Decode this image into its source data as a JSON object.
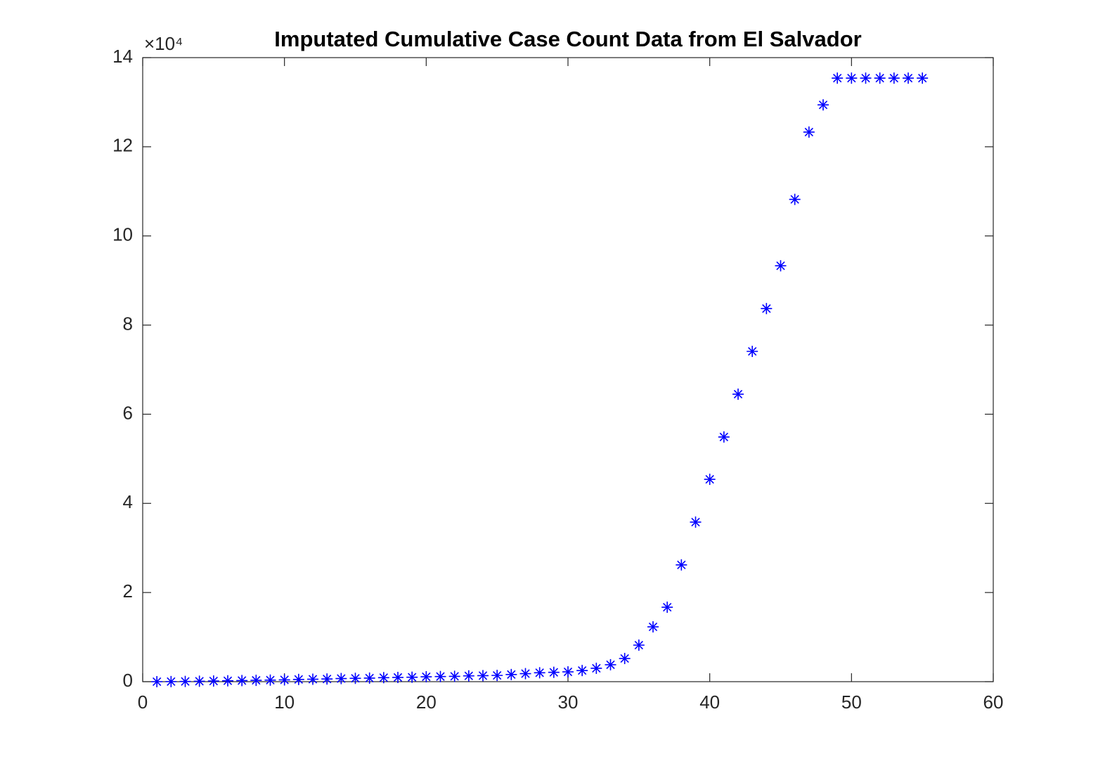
{
  "chart_data": {
    "type": "scatter",
    "title": "Imputated Cumulative Case Count Data from El Salvador",
    "y_exponent_label": "×10⁴",
    "marker": "asterisk",
    "color": "#0000ff",
    "x": [
      1,
      2,
      3,
      4,
      5,
      6,
      7,
      8,
      9,
      10,
      11,
      12,
      13,
      14,
      15,
      16,
      17,
      18,
      19,
      20,
      21,
      22,
      23,
      24,
      25,
      26,
      27,
      28,
      29,
      30,
      31,
      32,
      33,
      34,
      35,
      36,
      37,
      38,
      39,
      40,
      41,
      42,
      43,
      44,
      45,
      46,
      47,
      48,
      49,
      50,
      51,
      52,
      53,
      54,
      55
    ],
    "values": [
      0,
      0.002,
      0.005,
      0.01,
      0.015,
      0.02,
      0.025,
      0.03,
      0.035,
      0.04,
      0.05,
      0.055,
      0.06,
      0.07,
      0.075,
      0.08,
      0.09,
      0.095,
      0.1,
      0.11,
      0.115,
      0.12,
      0.13,
      0.135,
      0.14,
      0.16,
      0.18,
      0.2,
      0.21,
      0.22,
      0.25,
      0.3,
      0.38,
      0.52,
      0.82,
      1.23,
      1.67,
      2.62,
      3.58,
      4.54,
      5.49,
      6.45,
      7.41,
      8.37,
      9.33,
      10.82,
      12.33,
      12.94,
      13.54,
      13.54,
      13.54,
      13.54,
      13.54,
      13.54,
      13.54
    ],
    "xlim": [
      0,
      60
    ],
    "xticks": [
      0,
      10,
      20,
      30,
      40,
      50,
      60
    ],
    "ylim": [
      0,
      14
    ],
    "yticks": [
      0,
      2,
      4,
      6,
      8,
      10,
      12,
      14
    ],
    "grid": false
  }
}
